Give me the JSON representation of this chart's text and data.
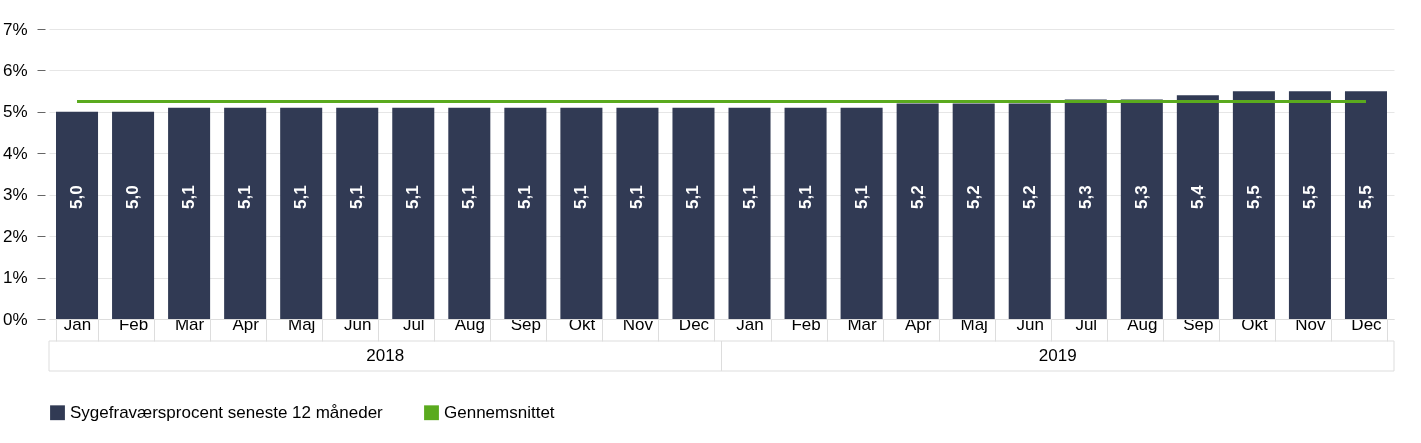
{
  "chart_data": {
    "type": "bar",
    "categories": [
      "Jan",
      "Feb",
      "Mar",
      "Apr",
      "Maj",
      "Jun",
      "Jul",
      "Aug",
      "Sep",
      "Okt",
      "Nov",
      "Dec",
      "Jan",
      "Feb",
      "Mar",
      "Apr",
      "Maj",
      "Jun",
      "Jul",
      "Aug",
      "Sep",
      "Okt",
      "Nov",
      "Dec"
    ],
    "series": [
      {
        "name": "Sygefraværsprocent seneste 12 måneder",
        "type": "bar",
        "color": "#313a54",
        "values": [
          5.0,
          5.0,
          5.1,
          5.1,
          5.1,
          5.1,
          5.1,
          5.1,
          5.1,
          5.1,
          5.1,
          5.1,
          5.1,
          5.1,
          5.1,
          5.2,
          5.2,
          5.2,
          5.3,
          5.3,
          5.4,
          5.5,
          5.5,
          5.5
        ],
        "value_labels": [
          "5,0",
          "5,0",
          "5,1",
          "5,1",
          "5,1",
          "5,1",
          "5,1",
          "5,1",
          "5,1",
          "5,1",
          "5,1",
          "5,1",
          "5,1",
          "5,1",
          "5,1",
          "5,2",
          "5,2",
          "5,2",
          "5,3",
          "5,3",
          "5,4",
          "5,5",
          "5,5",
          "5,5"
        ]
      },
      {
        "name": "Gennemsnittet",
        "type": "line",
        "color": "#5aaa1e",
        "values": [
          5.25,
          5.25,
          5.25,
          5.25,
          5.25,
          5.25,
          5.25,
          5.25,
          5.25,
          5.25,
          5.25,
          5.25,
          5.25,
          5.25,
          5.25,
          5.25,
          5.25,
          5.25,
          5.25,
          5.25,
          5.25,
          5.25,
          5.25,
          5.25
        ]
      }
    ],
    "ylim": [
      0,
      7
    ],
    "yticks": [
      {
        "value": 0,
        "label": "0%"
      },
      {
        "value": 1,
        "label": "1%"
      },
      {
        "value": 2,
        "label": "2%"
      },
      {
        "value": 3,
        "label": "3%"
      },
      {
        "value": 4,
        "label": "4%"
      },
      {
        "value": 5,
        "label": "5%"
      },
      {
        "value": 6,
        "label": "6%"
      },
      {
        "value": 7,
        "label": "7%"
      }
    ],
    "grid": "y",
    "legend": "bottom",
    "annotations": [
      "2018",
      "2019"
    ]
  }
}
